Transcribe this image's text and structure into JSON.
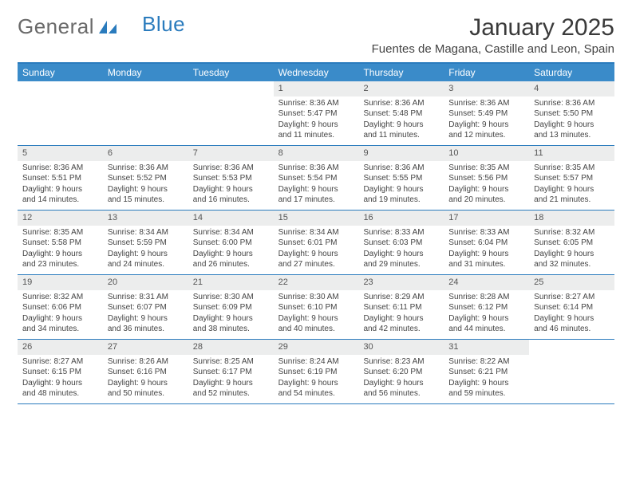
{
  "logo": {
    "word1": "General",
    "word2": "Blue"
  },
  "title": "January 2025",
  "location": "Fuentes de Magana, Castille and Leon, Spain",
  "weekdays": [
    "Sunday",
    "Monday",
    "Tuesday",
    "Wednesday",
    "Thursday",
    "Friday",
    "Saturday"
  ],
  "colors": {
    "header_bar": "#3a8bc9",
    "border": "#2a7bbd",
    "daynum_bg": "#eceded",
    "text": "#444444",
    "logo_gray": "#6a6a6a",
    "logo_blue": "#2a7bbd"
  },
  "weeks": [
    [
      null,
      null,
      null,
      {
        "n": "1",
        "l1": "Sunrise: 8:36 AM",
        "l2": "Sunset: 5:47 PM",
        "l3": "Daylight: 9 hours",
        "l4": "and 11 minutes."
      },
      {
        "n": "2",
        "l1": "Sunrise: 8:36 AM",
        "l2": "Sunset: 5:48 PM",
        "l3": "Daylight: 9 hours",
        "l4": "and 11 minutes."
      },
      {
        "n": "3",
        "l1": "Sunrise: 8:36 AM",
        "l2": "Sunset: 5:49 PM",
        "l3": "Daylight: 9 hours",
        "l4": "and 12 minutes."
      },
      {
        "n": "4",
        "l1": "Sunrise: 8:36 AM",
        "l2": "Sunset: 5:50 PM",
        "l3": "Daylight: 9 hours",
        "l4": "and 13 minutes."
      }
    ],
    [
      {
        "n": "5",
        "l1": "Sunrise: 8:36 AM",
        "l2": "Sunset: 5:51 PM",
        "l3": "Daylight: 9 hours",
        "l4": "and 14 minutes."
      },
      {
        "n": "6",
        "l1": "Sunrise: 8:36 AM",
        "l2": "Sunset: 5:52 PM",
        "l3": "Daylight: 9 hours",
        "l4": "and 15 minutes."
      },
      {
        "n": "7",
        "l1": "Sunrise: 8:36 AM",
        "l2": "Sunset: 5:53 PM",
        "l3": "Daylight: 9 hours",
        "l4": "and 16 minutes."
      },
      {
        "n": "8",
        "l1": "Sunrise: 8:36 AM",
        "l2": "Sunset: 5:54 PM",
        "l3": "Daylight: 9 hours",
        "l4": "and 17 minutes."
      },
      {
        "n": "9",
        "l1": "Sunrise: 8:36 AM",
        "l2": "Sunset: 5:55 PM",
        "l3": "Daylight: 9 hours",
        "l4": "and 19 minutes."
      },
      {
        "n": "10",
        "l1": "Sunrise: 8:35 AM",
        "l2": "Sunset: 5:56 PM",
        "l3": "Daylight: 9 hours",
        "l4": "and 20 minutes."
      },
      {
        "n": "11",
        "l1": "Sunrise: 8:35 AM",
        "l2": "Sunset: 5:57 PM",
        "l3": "Daylight: 9 hours",
        "l4": "and 21 minutes."
      }
    ],
    [
      {
        "n": "12",
        "l1": "Sunrise: 8:35 AM",
        "l2": "Sunset: 5:58 PM",
        "l3": "Daylight: 9 hours",
        "l4": "and 23 minutes."
      },
      {
        "n": "13",
        "l1": "Sunrise: 8:34 AM",
        "l2": "Sunset: 5:59 PM",
        "l3": "Daylight: 9 hours",
        "l4": "and 24 minutes."
      },
      {
        "n": "14",
        "l1": "Sunrise: 8:34 AM",
        "l2": "Sunset: 6:00 PM",
        "l3": "Daylight: 9 hours",
        "l4": "and 26 minutes."
      },
      {
        "n": "15",
        "l1": "Sunrise: 8:34 AM",
        "l2": "Sunset: 6:01 PM",
        "l3": "Daylight: 9 hours",
        "l4": "and 27 minutes."
      },
      {
        "n": "16",
        "l1": "Sunrise: 8:33 AM",
        "l2": "Sunset: 6:03 PM",
        "l3": "Daylight: 9 hours",
        "l4": "and 29 minutes."
      },
      {
        "n": "17",
        "l1": "Sunrise: 8:33 AM",
        "l2": "Sunset: 6:04 PM",
        "l3": "Daylight: 9 hours",
        "l4": "and 31 minutes."
      },
      {
        "n": "18",
        "l1": "Sunrise: 8:32 AM",
        "l2": "Sunset: 6:05 PM",
        "l3": "Daylight: 9 hours",
        "l4": "and 32 minutes."
      }
    ],
    [
      {
        "n": "19",
        "l1": "Sunrise: 8:32 AM",
        "l2": "Sunset: 6:06 PM",
        "l3": "Daylight: 9 hours",
        "l4": "and 34 minutes."
      },
      {
        "n": "20",
        "l1": "Sunrise: 8:31 AM",
        "l2": "Sunset: 6:07 PM",
        "l3": "Daylight: 9 hours",
        "l4": "and 36 minutes."
      },
      {
        "n": "21",
        "l1": "Sunrise: 8:30 AM",
        "l2": "Sunset: 6:09 PM",
        "l3": "Daylight: 9 hours",
        "l4": "and 38 minutes."
      },
      {
        "n": "22",
        "l1": "Sunrise: 8:30 AM",
        "l2": "Sunset: 6:10 PM",
        "l3": "Daylight: 9 hours",
        "l4": "and 40 minutes."
      },
      {
        "n": "23",
        "l1": "Sunrise: 8:29 AM",
        "l2": "Sunset: 6:11 PM",
        "l3": "Daylight: 9 hours",
        "l4": "and 42 minutes."
      },
      {
        "n": "24",
        "l1": "Sunrise: 8:28 AM",
        "l2": "Sunset: 6:12 PM",
        "l3": "Daylight: 9 hours",
        "l4": "and 44 minutes."
      },
      {
        "n": "25",
        "l1": "Sunrise: 8:27 AM",
        "l2": "Sunset: 6:14 PM",
        "l3": "Daylight: 9 hours",
        "l4": "and 46 minutes."
      }
    ],
    [
      {
        "n": "26",
        "l1": "Sunrise: 8:27 AM",
        "l2": "Sunset: 6:15 PM",
        "l3": "Daylight: 9 hours",
        "l4": "and 48 minutes."
      },
      {
        "n": "27",
        "l1": "Sunrise: 8:26 AM",
        "l2": "Sunset: 6:16 PM",
        "l3": "Daylight: 9 hours",
        "l4": "and 50 minutes."
      },
      {
        "n": "28",
        "l1": "Sunrise: 8:25 AM",
        "l2": "Sunset: 6:17 PM",
        "l3": "Daylight: 9 hours",
        "l4": "and 52 minutes."
      },
      {
        "n": "29",
        "l1": "Sunrise: 8:24 AM",
        "l2": "Sunset: 6:19 PM",
        "l3": "Daylight: 9 hours",
        "l4": "and 54 minutes."
      },
      {
        "n": "30",
        "l1": "Sunrise: 8:23 AM",
        "l2": "Sunset: 6:20 PM",
        "l3": "Daylight: 9 hours",
        "l4": "and 56 minutes."
      },
      {
        "n": "31",
        "l1": "Sunrise: 8:22 AM",
        "l2": "Sunset: 6:21 PM",
        "l3": "Daylight: 9 hours",
        "l4": "and 59 minutes."
      },
      null
    ]
  ]
}
